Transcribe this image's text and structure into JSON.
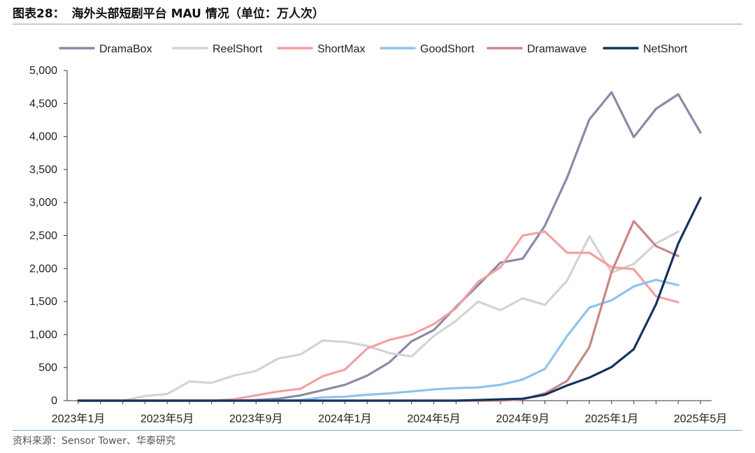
{
  "header": {
    "figure_label": "图表28：",
    "title": "海外头部短剧平台 MAU 情况（单位：万人次）"
  },
  "source": "资料来源：Sensor Tower、华泰研究",
  "chart_data": {
    "type": "line",
    "grid": false,
    "legend_position": "top",
    "ylim": [
      0,
      5000
    ],
    "y_ticks": [
      {
        "value": 0,
        "label": "0"
      },
      {
        "value": 500,
        "label": "500"
      },
      {
        "value": 1000,
        "label": "1,000"
      },
      {
        "value": 1500,
        "label": "1,500"
      },
      {
        "value": 2000,
        "label": "2,000"
      },
      {
        "value": 2500,
        "label": "2,500"
      },
      {
        "value": 3000,
        "label": "3,000"
      },
      {
        "value": 3500,
        "label": "3,500"
      },
      {
        "value": 4000,
        "label": "4,000"
      },
      {
        "value": 4500,
        "label": "4,500"
      },
      {
        "value": 5000,
        "label": "5,000"
      }
    ],
    "x": [
      "2023-01",
      "2023-02",
      "2023-03",
      "2023-04",
      "2023-05",
      "2023-06",
      "2023-07",
      "2023-08",
      "2023-09",
      "2023-10",
      "2023-11",
      "2023-12",
      "2024-01",
      "2024-02",
      "2024-03",
      "2024-04",
      "2024-05",
      "2024-06",
      "2024-07",
      "2024-08",
      "2024-09",
      "2024-10",
      "2024-11",
      "2024-12",
      "2025-01",
      "2025-02",
      "2025-03",
      "2025-04",
      "2025-05"
    ],
    "x_tick_labels": [
      {
        "x": "2023-01",
        "label": "2023年1月"
      },
      {
        "x": "2023-05",
        "label": "2023年5月"
      },
      {
        "x": "2023-09",
        "label": "2023年9月"
      },
      {
        "x": "2024-01",
        "label": "2024年1月"
      },
      {
        "x": "2024-05",
        "label": "2024年5月"
      },
      {
        "x": "2024-09",
        "label": "2024年9月"
      },
      {
        "x": "2025-01",
        "label": "2025年1月"
      },
      {
        "x": "2025-05",
        "label": "2025年5月"
      }
    ],
    "series": [
      {
        "name": "DramaBox",
        "color": "#8a8aa6",
        "values": [
          0,
          0,
          0,
          0,
          0,
          0,
          0,
          0,
          10,
          30,
          80,
          160,
          240,
          380,
          580,
          900,
          1070,
          1420,
          1750,
          2090,
          2150,
          2650,
          3380,
          4260,
          4670,
          3990,
          4420,
          4640,
          4060
        ]
      },
      {
        "name": "ReelShort",
        "color": "#d3d3d3",
        "values": [
          0,
          0,
          0,
          70,
          100,
          290,
          270,
          380,
          450,
          640,
          700,
          910,
          890,
          830,
          720,
          670,
          980,
          1210,
          1500,
          1370,
          1550,
          1450,
          1820,
          2490,
          1940,
          2070,
          2380,
          2560,
          null
        ]
      },
      {
        "name": "ShortMax",
        "color": "#f4a0a0",
        "values": [
          0,
          0,
          0,
          0,
          0,
          0,
          0,
          20,
          80,
          140,
          180,
          370,
          470,
          790,
          920,
          1000,
          1160,
          1400,
          1800,
          2020,
          2500,
          2560,
          2240,
          2240,
          2020,
          1990,
          1580,
          1490,
          null
        ]
      },
      {
        "name": "GoodShort",
        "color": "#8dc3ec",
        "values": [
          0,
          0,
          0,
          0,
          0,
          0,
          0,
          0,
          0,
          0,
          10,
          50,
          60,
          90,
          110,
          140,
          170,
          190,
          200,
          240,
          320,
          480,
          980,
          1410,
          1520,
          1730,
          1830,
          1750,
          null
        ]
      },
      {
        "name": "Dramawave",
        "color": "#c98686",
        "values": [
          0,
          0,
          0,
          0,
          0,
          0,
          0,
          0,
          0,
          0,
          0,
          0,
          0,
          0,
          0,
          0,
          0,
          0,
          0,
          0,
          20,
          110,
          300,
          810,
          1950,
          2720,
          2340,
          2190,
          null
        ]
      },
      {
        "name": "NetShort",
        "color": "#14325f",
        "values": [
          0,
          0,
          0,
          0,
          0,
          0,
          0,
          0,
          0,
          0,
          0,
          0,
          0,
          0,
          0,
          0,
          0,
          0,
          10,
          20,
          30,
          90,
          230,
          350,
          510,
          780,
          1460,
          2380,
          3070
        ]
      }
    ]
  }
}
